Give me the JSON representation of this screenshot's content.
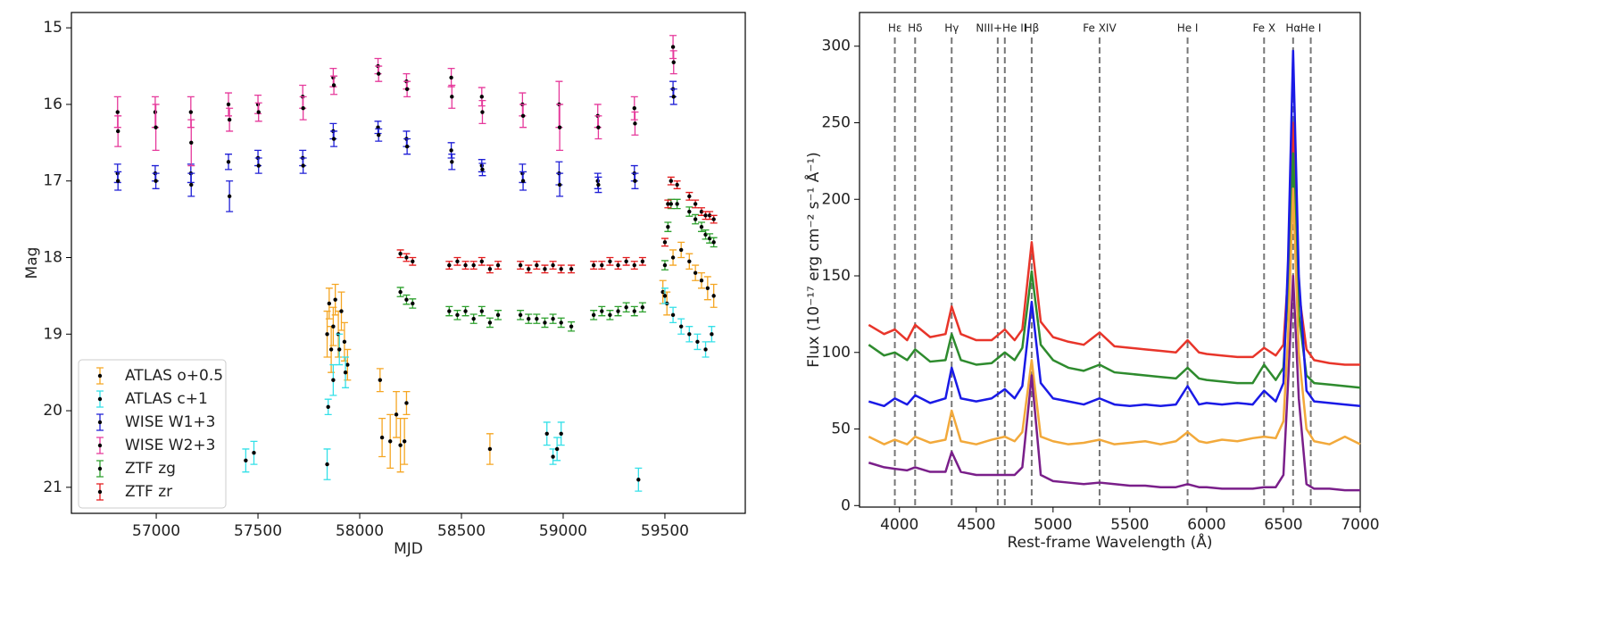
{
  "chart_data": [
    {
      "type": "errorbar",
      "xlabel": "MJD",
      "ylabel": "Mag",
      "xlim": [
        56583,
        59895
      ],
      "ylim": [
        21.34,
        14.8
      ],
      "xticks": [
        57000,
        57500,
        58000,
        58500,
        59000,
        59500
      ],
      "yticks": [
        15,
        16,
        17,
        18,
        19,
        20,
        21
      ],
      "legend": "lower left",
      "marker_color": "#000000",
      "series": [
        {
          "name": "ATLAS o+0.5",
          "color": "#f5a623",
          "x": [
            57840,
            57850,
            57860,
            57870,
            57880,
            57895,
            57910,
            57925,
            57940,
            58100,
            58110,
            58150,
            58180,
            58200,
            58220,
            58230,
            58640,
            59490,
            59510,
            59540,
            59580,
            59620,
            59650,
            59680,
            59710,
            59740
          ],
          "values": [
            19.0,
            18.6,
            19.2,
            18.9,
            18.55,
            19.0,
            18.7,
            19.1,
            19.4,
            19.6,
            20.35,
            20.4,
            20.05,
            20.45,
            20.4,
            19.9,
            20.5,
            18.45,
            18.6,
            18.0,
            17.9,
            18.05,
            18.2,
            18.3,
            18.4,
            18.5
          ],
          "errors": [
            0.3,
            0.2,
            0.3,
            0.25,
            0.2,
            0.3,
            0.25,
            0.25,
            0.2,
            0.15,
            0.25,
            0.35,
            0.3,
            0.35,
            0.3,
            0.15,
            0.2,
            0.15,
            0.15,
            0.1,
            0.1,
            0.1,
            0.1,
            0.1,
            0.15,
            0.15
          ]
        },
        {
          "name": "ATLAS c+1",
          "color": "#33e0e8",
          "x": [
            57440,
            57480,
            57840,
            57845,
            57870,
            57900,
            57930,
            58920,
            58950,
            58970,
            58990,
            59370,
            59500,
            59540,
            59580,
            59620,
            59660,
            59700,
            59730
          ],
          "values": [
            20.65,
            20.55,
            20.7,
            19.95,
            19.6,
            19.2,
            19.5,
            20.3,
            20.6,
            20.5,
            20.3,
            20.9,
            18.5,
            18.75,
            18.9,
            19.0,
            19.1,
            19.2,
            19.0
          ],
          "errors": [
            0.15,
            0.15,
            0.2,
            0.1,
            0.2,
            0.2,
            0.2,
            0.15,
            0.1,
            0.15,
            0.15,
            0.15,
            0.1,
            0.1,
            0.1,
            0.1,
            0.1,
            0.1,
            0.1
          ]
        },
        {
          "name": "WISE W1+3",
          "color": "#1f1fd6",
          "x": [
            56810,
            56812,
            56995,
            56998,
            57170,
            57172,
            57355,
            57360,
            57500,
            57503,
            57720,
            57722,
            57870,
            57873,
            58090,
            58093,
            58230,
            58233,
            58450,
            58453,
            58600,
            58603,
            58800,
            58803,
            58980,
            58983,
            59170,
            59173,
            59350,
            59353,
            59540,
            59543
          ],
          "values": [
            16.9,
            17.0,
            16.9,
            17.0,
            16.9,
            17.05,
            16.75,
            17.2,
            16.7,
            16.8,
            16.7,
            16.8,
            16.35,
            16.45,
            16.3,
            16.4,
            16.45,
            16.55,
            16.6,
            16.75,
            16.8,
            16.85,
            16.9,
            17.0,
            16.9,
            17.05,
            17.0,
            17.05,
            16.9,
            17.0,
            15.8,
            15.9
          ],
          "errors": [
            0.12,
            0.12,
            0.1,
            0.1,
            0.12,
            0.15,
            0.1,
            0.2,
            0.1,
            0.1,
            0.1,
            0.1,
            0.1,
            0.1,
            0.08,
            0.08,
            0.1,
            0.1,
            0.1,
            0.1,
            0.08,
            0.08,
            0.12,
            0.12,
            0.15,
            0.15,
            0.1,
            0.1,
            0.1,
            0.1,
            0.1,
            0.1
          ]
        },
        {
          "name": "WISE W2+3",
          "color": "#e6399b",
          "x": [
            56810,
            56812,
            56995,
            56998,
            57170,
            57172,
            57355,
            57360,
            57500,
            57503,
            57720,
            57722,
            57870,
            57873,
            58090,
            58093,
            58230,
            58233,
            58450,
            58453,
            58600,
            58603,
            58800,
            58803,
            58980,
            58983,
            59170,
            59173,
            59350,
            59353,
            59540,
            59543
          ],
          "values": [
            16.1,
            16.35,
            16.1,
            16.3,
            16.1,
            16.5,
            16.0,
            16.2,
            16.0,
            16.1,
            15.9,
            16.05,
            15.65,
            15.75,
            15.5,
            15.6,
            15.7,
            15.8,
            15.65,
            15.9,
            15.9,
            16.1,
            16.0,
            16.15,
            16.0,
            16.3,
            16.15,
            16.3,
            16.05,
            16.25,
            15.25,
            15.45
          ],
          "errors": [
            0.2,
            0.2,
            0.2,
            0.3,
            0.2,
            0.3,
            0.15,
            0.15,
            0.12,
            0.12,
            0.15,
            0.15,
            0.12,
            0.12,
            0.1,
            0.1,
            0.1,
            0.1,
            0.12,
            0.15,
            0.12,
            0.15,
            0.15,
            0.15,
            0.3,
            0.3,
            0.15,
            0.15,
            0.15,
            0.15,
            0.15,
            0.15
          ]
        },
        {
          "name": "ZTF zg",
          "color": "#2ca02c",
          "x": [
            58200,
            58230,
            58260,
            58440,
            58480,
            58520,
            58560,
            58600,
            58640,
            58680,
            58790,
            58830,
            58870,
            58910,
            58950,
            58990,
            59040,
            59150,
            59190,
            59230,
            59270,
            59310,
            59350,
            59390,
            59500,
            59515,
            59530,
            59560,
            59620,
            59650,
            59680,
            59700,
            59720,
            59740
          ],
          "values": [
            18.45,
            18.55,
            18.6,
            18.7,
            18.75,
            18.7,
            18.8,
            18.7,
            18.85,
            18.75,
            18.75,
            18.8,
            18.8,
            18.85,
            18.8,
            18.85,
            18.9,
            18.75,
            18.7,
            18.75,
            18.7,
            18.65,
            18.7,
            18.65,
            18.1,
            17.6,
            17.3,
            17.3,
            17.4,
            17.5,
            17.6,
            17.7,
            17.75,
            17.8
          ],
          "errors": [
            0.06,
            0.06,
            0.06,
            0.06,
            0.06,
            0.06,
            0.06,
            0.06,
            0.06,
            0.06,
            0.06,
            0.06,
            0.06,
            0.06,
            0.06,
            0.06,
            0.06,
            0.06,
            0.06,
            0.06,
            0.06,
            0.06,
            0.06,
            0.06,
            0.06,
            0.06,
            0.06,
            0.06,
            0.06,
            0.06,
            0.06,
            0.06,
            0.06,
            0.06
          ]
        },
        {
          "name": "ZTF zr",
          "color": "#e41a1c",
          "x": [
            58200,
            58230,
            58260,
            58440,
            58480,
            58520,
            58560,
            58600,
            58640,
            58680,
            58790,
            58830,
            58870,
            58910,
            58950,
            58990,
            59040,
            59150,
            59190,
            59230,
            59270,
            59310,
            59350,
            59390,
            59500,
            59515,
            59530,
            59560,
            59620,
            59650,
            59680,
            59700,
            59720,
            59740
          ],
          "values": [
            17.95,
            18.0,
            18.05,
            18.1,
            18.05,
            18.1,
            18.1,
            18.05,
            18.15,
            18.1,
            18.1,
            18.15,
            18.1,
            18.15,
            18.1,
            18.15,
            18.15,
            18.1,
            18.1,
            18.05,
            18.1,
            18.05,
            18.1,
            18.05,
            17.8,
            17.3,
            17.0,
            17.05,
            17.2,
            17.3,
            17.4,
            17.45,
            17.45,
            17.5
          ],
          "errors": [
            0.05,
            0.05,
            0.05,
            0.05,
            0.05,
            0.05,
            0.05,
            0.05,
            0.05,
            0.05,
            0.05,
            0.05,
            0.05,
            0.05,
            0.05,
            0.05,
            0.05,
            0.05,
            0.05,
            0.05,
            0.05,
            0.05,
            0.05,
            0.05,
            0.05,
            0.05,
            0.05,
            0.05,
            0.05,
            0.05,
            0.05,
            0.05,
            0.05,
            0.05
          ]
        }
      ]
    },
    {
      "type": "line",
      "xlabel": "Rest-frame Wavelength (Å)",
      "ylabel": "Flux  (10⁻¹⁷ erg cm⁻² s⁻¹ Å⁻¹)",
      "xlim": [
        3740,
        7000
      ],
      "ylim": [
        -1,
        322
      ],
      "xticks": [
        4000,
        4500,
        5000,
        5500,
        6000,
        6500,
        7000
      ],
      "yticks": [
        0,
        50,
        100,
        150,
        200,
        250,
        300
      ],
      "line_color": "#777777",
      "lines": [
        {
          "label": "Hε",
          "x": [
            3970
          ]
        },
        {
          "label": "Hδ",
          "x": [
            4102
          ]
        },
        {
          "label": "Hγ",
          "x": [
            4340
          ]
        },
        {
          "label": "NIII+He II",
          "x": [
            4640,
            4686
          ]
        },
        {
          "label": "Hβ",
          "x": [
            4861
          ]
        },
        {
          "label": "Fe XIV",
          "x": [
            5303
          ]
        },
        {
          "label": "He I",
          "x": [
            5876
          ]
        },
        {
          "label": "Fe X",
          "x": [
            6374
          ]
        },
        {
          "label": "Hα",
          "x": [
            6563
          ]
        },
        {
          "label": "He I",
          "x": [
            6678
          ]
        }
      ],
      "x": [
        3800,
        3900,
        3970,
        4050,
        4102,
        4200,
        4300,
        4340,
        4400,
        4500,
        4600,
        4686,
        4750,
        4800,
        4861,
        4920,
        5000,
        5100,
        5200,
        5303,
        5400,
        5500,
        5600,
        5700,
        5800,
        5876,
        5950,
        6000,
        6100,
        6200,
        6300,
        6374,
        6450,
        6500,
        6530,
        6563,
        6600,
        6650,
        6700,
        6800,
        6900,
        7000
      ],
      "series": [
        {
          "color": "#e8352a",
          "values": [
            118,
            112,
            115,
            108,
            118,
            110,
            112,
            130,
            112,
            108,
            108,
            115,
            108,
            115,
            172,
            120,
            110,
            107,
            105,
            113,
            104,
            103,
            102,
            101,
            100,
            108,
            100,
            99,
            98,
            97,
            97,
            103,
            98,
            105,
            150,
            250,
            140,
            102,
            95,
            93,
            92,
            92
          ]
        },
        {
          "color": "#2e8b2e",
          "values": [
            105,
            98,
            100,
            95,
            102,
            94,
            95,
            112,
            95,
            92,
            93,
            100,
            95,
            103,
            153,
            105,
            95,
            90,
            88,
            92,
            87,
            86,
            85,
            84,
            83,
            90,
            83,
            82,
            81,
            80,
            80,
            92,
            82,
            90,
            140,
            230,
            125,
            85,
            80,
            79,
            78,
            77
          ]
        },
        {
          "color": "#1a1ae6",
          "values": [
            68,
            65,
            70,
            66,
            72,
            67,
            70,
            90,
            70,
            68,
            70,
            76,
            70,
            78,
            133,
            80,
            70,
            68,
            66,
            70,
            66,
            65,
            66,
            65,
            66,
            78,
            66,
            67,
            66,
            67,
            66,
            75,
            68,
            80,
            160,
            297,
            150,
            75,
            68,
            67,
            66,
            65
          ]
        },
        {
          "color": "#f2a93b",
          "values": [
            45,
            40,
            43,
            40,
            45,
            41,
            43,
            62,
            42,
            40,
            43,
            45,
            42,
            48,
            95,
            45,
            42,
            40,
            41,
            43,
            40,
            41,
            42,
            40,
            42,
            48,
            42,
            41,
            43,
            42,
            44,
            45,
            44,
            55,
            110,
            207,
            100,
            50,
            42,
            40,
            45,
            40
          ]
        },
        {
          "color": "#7a1f8a",
          "values": [
            28,
            25,
            24,
            23,
            25,
            22,
            22,
            35,
            22,
            20,
            20,
            20,
            20,
            25,
            85,
            20,
            16,
            15,
            14,
            15,
            14,
            13,
            13,
            12,
            12,
            14,
            12,
            12,
            11,
            11,
            11,
            12,
            12,
            20,
            80,
            150,
            70,
            14,
            11,
            11,
            10,
            10
          ]
        }
      ]
    }
  ]
}
